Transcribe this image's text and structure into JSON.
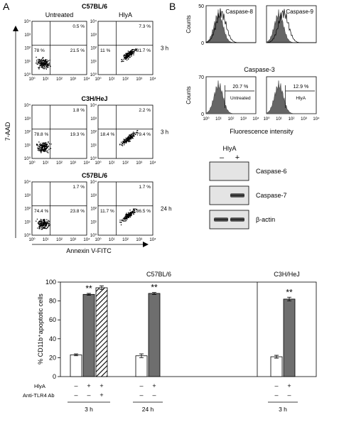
{
  "panel_a": {
    "letter": "A",
    "columns": [
      "Untreated",
      "HlyA"
    ],
    "rows": [
      {
        "title": "C57BL/6",
        "time": "3 h",
        "plots": [
          {
            "upper_right": "0.5 %",
            "lower_left": "78 %",
            "lower_right": "21.5 %"
          },
          {
            "upper_right": "7.3 %",
            "lower_left": "11 %",
            "lower_right": "81.7 %"
          }
        ]
      },
      {
        "title": "C3H/HeJ",
        "time": "3 h",
        "plots": [
          {
            "upper_right": "1.8 %",
            "lower_left": "78.8 %",
            "lower_right": "19.3 %"
          },
          {
            "upper_right": "2.2 %",
            "lower_left": "18.4 %",
            "lower_right": "79.4 %"
          }
        ]
      },
      {
        "title": "C57BL/6",
        "time": "24 h",
        "plots": [
          {
            "upper_right": "1.7 %",
            "lower_left": "74.4 %",
            "lower_right": "23.8 %"
          },
          {
            "upper_right": "1.7 %",
            "lower_left": "11.7 %",
            "lower_right": "86.5 %"
          }
        ]
      }
    ],
    "tick_labels": [
      "10⁰",
      "10¹",
      "10²",
      "10³",
      "10⁴"
    ],
    "y_label": "7-AAD",
    "x_label": "Annexin V-FITC"
  },
  "panel_b": {
    "letter": "B",
    "histograms": {
      "top": [
        "Caspase-8",
        "Caspase-9"
      ],
      "bottom_title": "Caspase-3",
      "y_label": "Counts",
      "top_yticks": [
        0,
        50
      ],
      "bottom_yticks": [
        0,
        70
      ],
      "gates": [
        {
          "percent": "20.7 %",
          "label": "Untreated"
        },
        {
          "percent": "12.9 %",
          "label": "HlyA"
        }
      ],
      "x_ticks": [
        "10⁰",
        "10¹",
        "10²",
        "10³",
        "10⁴"
      ],
      "x_label": "Fluorescence intensity"
    },
    "blot": {
      "treatment": "HlyA",
      "lanes": [
        "–",
        "+"
      ],
      "bands": [
        "Caspase-6",
        "Caspase-7",
        "β-actin"
      ]
    }
  },
  "chart_data": {
    "type": "bar",
    "groups": [
      "C57BL/6",
      "C3H/HeJ"
    ],
    "ylabel": "% CD11b⁺apoptotic cells",
    "values": [
      23,
      87,
      94,
      22,
      88,
      21,
      82
    ],
    "errors": [
      1,
      1,
      2,
      2,
      1,
      1.5,
      2
    ],
    "colors": [
      "#ffffff",
      "#6e6e6e",
      "#ffffff",
      "#ffffff",
      "#6e6e6e",
      "#ffffff",
      "#6e6e6e"
    ],
    "hatched": [
      false,
      false,
      true,
      false,
      false,
      false,
      false
    ],
    "star_labels": [
      null,
      "**",
      null,
      null,
      "**",
      null,
      "**"
    ],
    "sign_rows": [
      {
        "label": "HlyA",
        "signs": [
          "–",
          "+",
          "+",
          "–",
          "+",
          "–",
          "+"
        ]
      },
      {
        "label": "Anti-TLR4 Ab",
        "signs": [
          "–",
          "–",
          "+",
          "–",
          "–",
          "–",
          "–"
        ]
      }
    ],
    "time_labels": [
      "3 h",
      "24 h",
      "3 h"
    ],
    "ylim": [
      0,
      100
    ],
    "yticks": [
      0,
      20,
      40,
      60,
      80,
      100
    ]
  }
}
